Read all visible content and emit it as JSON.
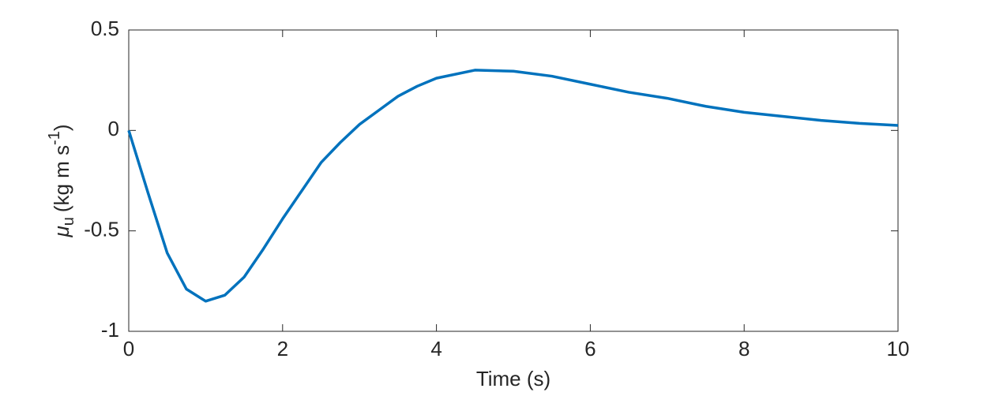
{
  "chart_data": {
    "type": "line",
    "xlabel": "Time (s)",
    "ylabel": {
      "symbol": "μ",
      "subscript": "u",
      "text": "(kg m s",
      "superscript": "-1",
      "close": ")"
    },
    "x": [
      0,
      0.25,
      0.5,
      0.75,
      1,
      1.25,
      1.5,
      1.75,
      2,
      2.25,
      2.5,
      2.75,
      3,
      3.25,
      3.5,
      3.75,
      4,
      4.5,
      5,
      5.5,
      6,
      6.5,
      7,
      7.5,
      8,
      8.5,
      9,
      9.5,
      10
    ],
    "series": [
      {
        "color": "#0072bd",
        "values": [
          0,
          -0.31,
          -0.61,
          -0.79,
          -0.85,
          -0.82,
          -0.73,
          -0.59,
          -0.44,
          -0.3,
          -0.16,
          -0.06,
          0.03,
          0.1,
          0.17,
          0.22,
          0.26,
          0.3,
          0.295,
          0.27,
          0.23,
          0.19,
          0.16,
          0.12,
          0.09,
          0.07,
          0.05,
          0.035,
          0.025
        ]
      }
    ],
    "xlim": [
      0,
      10
    ],
    "xticks": [
      0,
      2,
      4,
      6,
      8,
      10
    ],
    "ylim": [
      -1,
      0.5
    ],
    "yticks": [
      -1,
      -0.5,
      0,
      0.5
    ],
    "grid": false
  }
}
